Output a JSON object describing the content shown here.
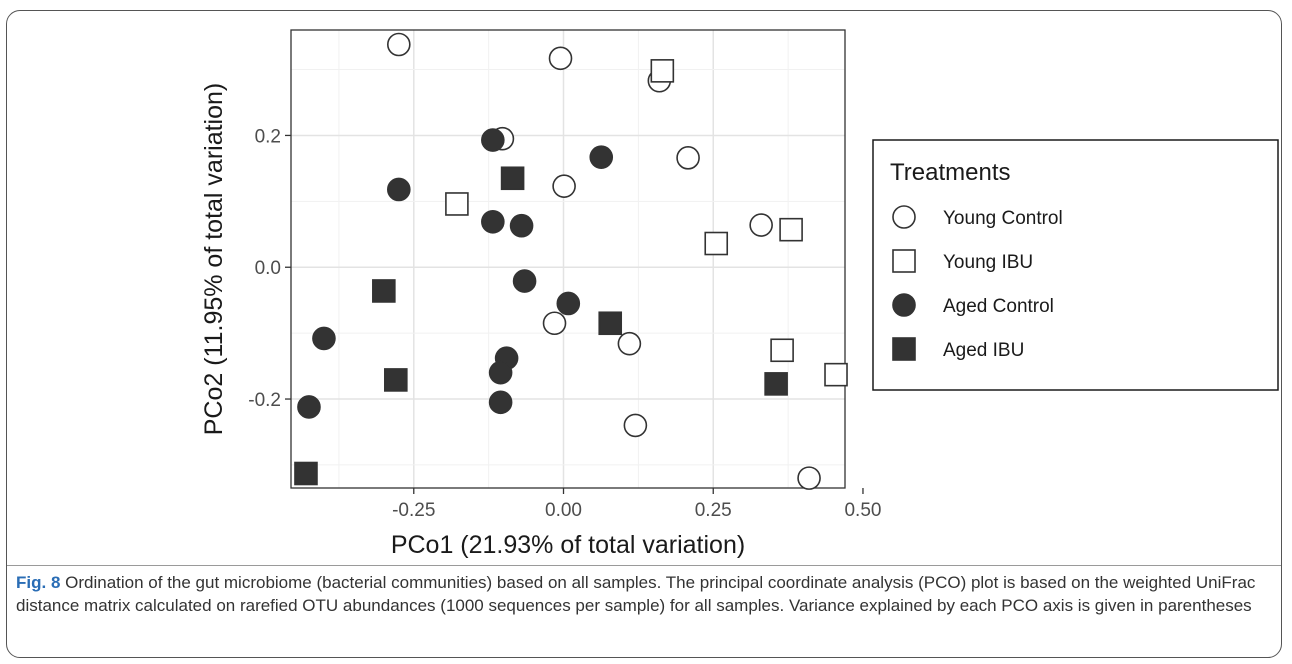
{
  "chart_data": {
    "type": "scatter",
    "xlabel": "PCo1 (21.93% of total variation)",
    "ylabel": "PCo2 (11.95% of total variation)",
    "xlim": [
      -0.455,
      0.47
    ],
    "ylim": [
      -0.335,
      0.36
    ],
    "x_ticks": [
      -0.25,
      0.0,
      0.25,
      0.5
    ],
    "x_tick_labels": [
      "-0.25",
      "0.00",
      "0.25",
      "0.50"
    ],
    "y_ticks": [
      -0.2,
      0.0,
      0.2
    ],
    "y_tick_labels": [
      "-0.2",
      "0.0",
      "0.2"
    ],
    "grid": true,
    "legend": {
      "title": "Treatments",
      "placement": "right",
      "entries": [
        "Young Control",
        "Young IBU",
        "Aged Control",
        "Aged IBU"
      ]
    },
    "series": [
      {
        "name": "Young Control",
        "marker": "circle",
        "filled": false,
        "color": "#ffffff",
        "points": [
          [
            -0.275,
            0.338
          ],
          [
            -0.005,
            0.317
          ],
          [
            0.16,
            0.283
          ],
          [
            -0.102,
            0.195
          ],
          [
            0.208,
            0.166
          ],
          [
            0.001,
            0.123
          ],
          [
            0.33,
            0.064
          ],
          [
            -0.015,
            -0.085
          ],
          [
            0.11,
            -0.116
          ],
          [
            0.12,
            -0.24
          ],
          [
            0.41,
            -0.32
          ]
        ]
      },
      {
        "name": "Young IBU",
        "marker": "square",
        "filled": false,
        "color": "#ffffff",
        "points": [
          [
            0.165,
            0.298
          ],
          [
            -0.178,
            0.096
          ],
          [
            0.255,
            0.036
          ],
          [
            0.38,
            0.057
          ],
          [
            0.365,
            -0.126
          ],
          [
            0.455,
            -0.163
          ]
        ]
      },
      {
        "name": "Aged Control",
        "marker": "circle",
        "filled": true,
        "color": "#333333",
        "points": [
          [
            -0.118,
            0.193
          ],
          [
            0.063,
            0.167
          ],
          [
            -0.275,
            0.118
          ],
          [
            -0.118,
            0.069
          ],
          [
            -0.07,
            0.063
          ],
          [
            -0.065,
            -0.021
          ],
          [
            0.008,
            -0.055
          ],
          [
            -0.095,
            -0.138
          ],
          [
            -0.105,
            -0.16
          ],
          [
            -0.4,
            -0.108
          ],
          [
            -0.105,
            -0.205
          ],
          [
            -0.425,
            -0.212
          ]
        ]
      },
      {
        "name": "Aged IBU",
        "marker": "square",
        "filled": true,
        "color": "#333333",
        "points": [
          [
            -0.085,
            0.135
          ],
          [
            -0.3,
            -0.036
          ],
          [
            0.078,
            -0.085
          ],
          [
            -0.28,
            -0.171
          ],
          [
            0.355,
            -0.177
          ],
          [
            -0.43,
            -0.313
          ]
        ]
      }
    ]
  },
  "caption": {
    "label": "Fig. 8",
    "text": " Ordination of the gut microbiome (bacterial communities) based on all samples. The principal coordinate analysis (PCO) plot is based on the weighted UniFrac distance matrix calculated on rarefied OTU abundances (1000 sequences per sample) for all samples. Variance explained by each PCO axis is given in parentheses"
  }
}
